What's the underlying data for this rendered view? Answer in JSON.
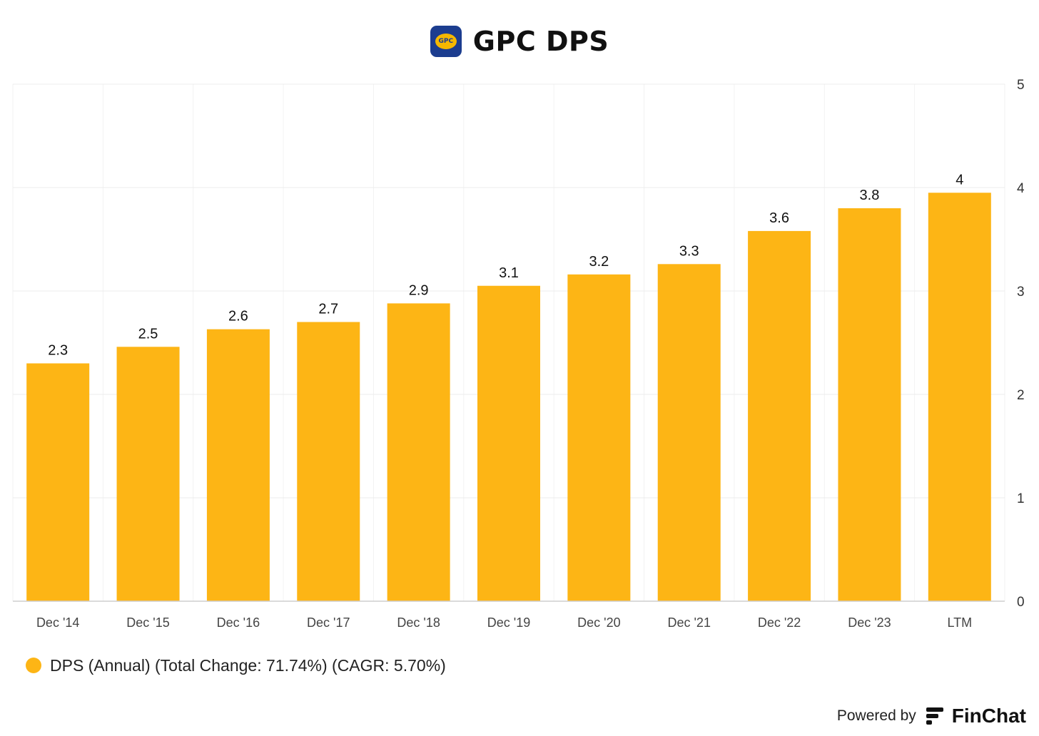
{
  "header": {
    "logo_text": "GPC",
    "title": "GPC DPS"
  },
  "chart_data": {
    "type": "bar",
    "title": "GPC DPS",
    "categories": [
      "Dec '14",
      "Dec '15",
      "Dec '16",
      "Dec '17",
      "Dec '18",
      "Dec '19",
      "Dec '20",
      "Dec '21",
      "Dec '22",
      "Dec '23",
      "LTM"
    ],
    "values": [
      2.3,
      2.46,
      2.63,
      2.7,
      2.88,
      3.05,
      3.16,
      3.26,
      3.58,
      3.8,
      3.95
    ],
    "data_labels": [
      "2.3",
      "2.5",
      "2.6",
      "2.7",
      "2.9",
      "3.1",
      "3.2",
      "3.3",
      "3.6",
      "3.8",
      "4"
    ],
    "yticks": [
      "0",
      "1",
      "2",
      "3",
      "4",
      "5"
    ],
    "ylim": [
      0,
      5
    ],
    "y_axis_side": "right",
    "grid": true,
    "bar_color": "#fdb515",
    "legend_position": "bottom-left",
    "series": [
      {
        "name": "DPS (Annual) (Total Change: 71.74%) (CAGR: 5.70%)",
        "color": "#fdb515"
      }
    ]
  },
  "legend": {
    "label": "DPS (Annual) (Total Change: 71.74%) (CAGR: 5.70%)"
  },
  "footer": {
    "powered_by": "Powered by",
    "brand": "FinChat"
  }
}
